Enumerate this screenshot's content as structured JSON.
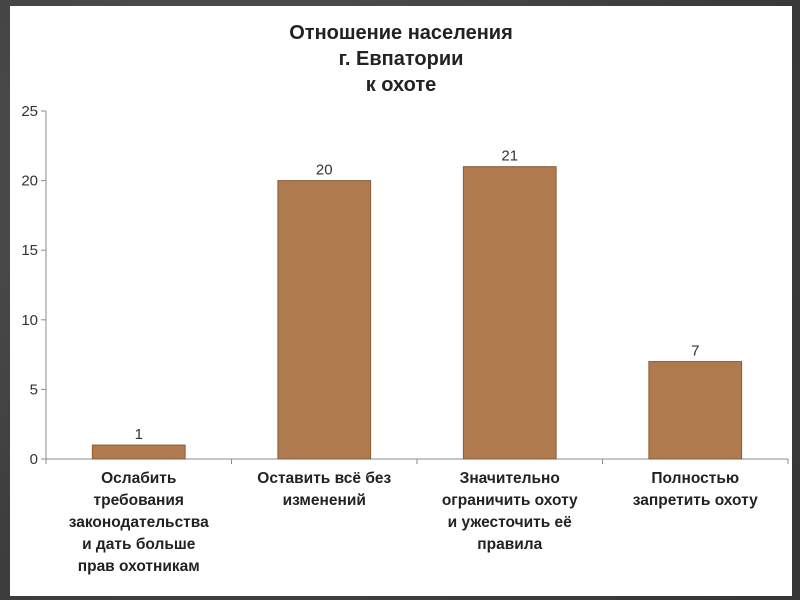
{
  "chart_data": {
    "type": "bar",
    "title_lines": [
      "Отношение населения",
      "г. Евпатории",
      "к охоте"
    ],
    "categories": [
      [
        "Ослабить",
        "требования",
        "законодательства",
        "и дать больше",
        "прав охотникам"
      ],
      [
        "Оставить всё без",
        "изменений"
      ],
      [
        "Значительно",
        "ограничить охоту",
        "и ужесточить  её",
        "правила"
      ],
      [
        "Полностью",
        "запретить охоту"
      ]
    ],
    "values": [
      1,
      20,
      21,
      7
    ],
    "ylim": [
      0,
      25
    ],
    "yticks": [
      0,
      5,
      10,
      15,
      20,
      25
    ],
    "grid": false,
    "legend": "none",
    "bar_color": "#b07a4f",
    "bar_stroke": "#8a5c38",
    "axis_color": "#8c8c8c"
  }
}
